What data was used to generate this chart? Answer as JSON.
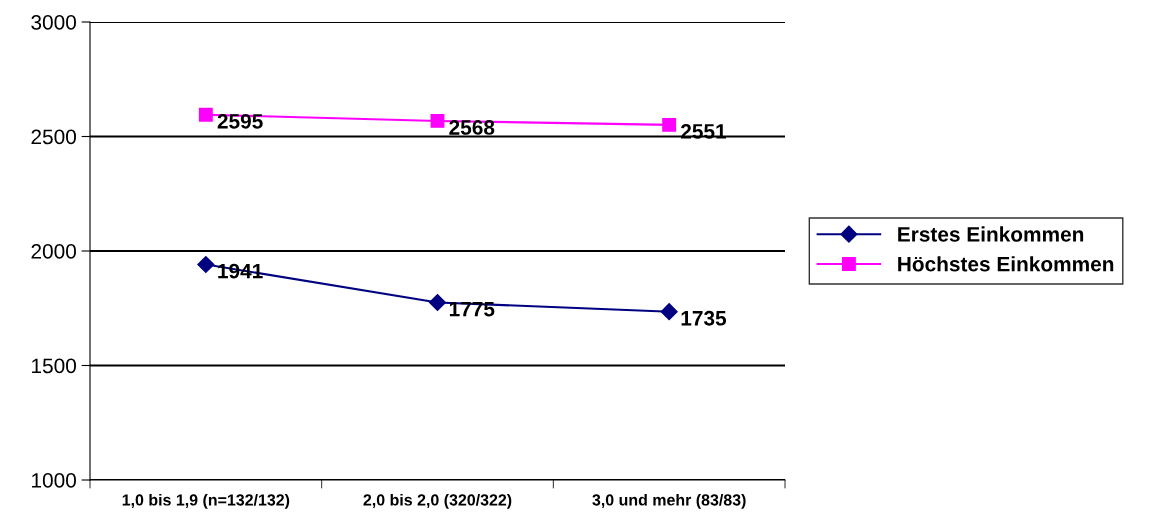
{
  "chart_data": {
    "type": "line",
    "categories": [
      "1,0 bis 1,9 (n=132/132)",
      "2,0 bis 2,0 (320/322)",
      "3,0 und mehr (83/83)"
    ],
    "series": [
      {
        "name": "Erstes Einkommen",
        "color": "#000080",
        "marker": "diamond",
        "values": [
          1941,
          1775,
          1735
        ]
      },
      {
        "name": "Höchstes Einkommen",
        "color": "#ff00ff",
        "marker": "square",
        "values": [
          2595,
          2568,
          2551
        ]
      }
    ],
    "ylim": [
      1000,
      3000
    ],
    "yticks": [
      1000,
      1500,
      2000,
      2500,
      3000
    ],
    "grid": "y",
    "legend": "right",
    "data_labels": true,
    "line_style": "solid"
  }
}
